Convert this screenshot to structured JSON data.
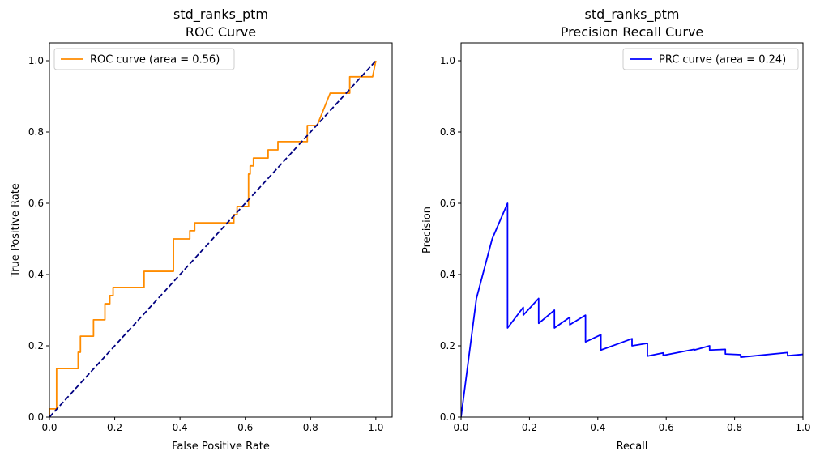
{
  "chart_data": [
    {
      "type": "line",
      "title": "std_ranks_ptm",
      "subtitle": "ROC Curve",
      "xlabel": "False Positive Rate",
      "ylabel": "True Positive Rate",
      "xlim": [
        0.0,
        1.05
      ],
      "ylim": [
        0.0,
        1.05
      ],
      "xticks": [
        "0.0",
        "0.2",
        "0.4",
        "0.6",
        "0.8",
        "1.0"
      ],
      "yticks": [
        "0.0",
        "0.2",
        "0.4",
        "0.6",
        "0.8",
        "1.0"
      ],
      "grid": false,
      "legend_position": "upper-left",
      "series": [
        {
          "name": "ROC curve (area = 0.56)",
          "color": "#ff8c00",
          "style": "solid",
          "x": [
            0.0,
            0.0,
            0.022,
            0.022,
            0.088,
            0.088,
            0.095,
            0.095,
            0.135,
            0.135,
            0.17,
            0.17,
            0.185,
            0.185,
            0.195,
            0.195,
            0.29,
            0.29,
            0.38,
            0.38,
            0.43,
            0.43,
            0.445,
            0.445,
            0.565,
            0.565,
            0.575,
            0.575,
            0.61,
            0.61,
            0.615,
            0.615,
            0.625,
            0.625,
            0.67,
            0.67,
            0.7,
            0.7,
            0.79,
            0.79,
            0.82,
            0.82,
            0.86,
            0.92,
            0.92,
            0.99,
            1.0
          ],
          "y": [
            0.0,
            0.023,
            0.023,
            0.136,
            0.136,
            0.182,
            0.182,
            0.227,
            0.227,
            0.273,
            0.273,
            0.318,
            0.318,
            0.341,
            0.341,
            0.364,
            0.364,
            0.409,
            0.409,
            0.5,
            0.5,
            0.523,
            0.523,
            0.545,
            0.545,
            0.568,
            0.568,
            0.591,
            0.591,
            0.682,
            0.682,
            0.705,
            0.705,
            0.727,
            0.727,
            0.75,
            0.75,
            0.773,
            0.773,
            0.818,
            0.818,
            0.818,
            0.909,
            0.909,
            0.955,
            0.955,
            1.0
          ]
        },
        {
          "name": "",
          "color": "#000080",
          "style": "dashed",
          "x": [
            0.0,
            1.0
          ],
          "y": [
            0.0,
            1.0
          ]
        }
      ]
    },
    {
      "type": "line",
      "title": "std_ranks_ptm",
      "subtitle": "Precision Recall Curve",
      "xlabel": "Recall",
      "ylabel": "Precision",
      "xlim": [
        0.0,
        1.0
      ],
      "ylim": [
        0.0,
        1.05
      ],
      "xticks": [
        "0.0",
        "0.2",
        "0.4",
        "0.6",
        "0.8",
        "1.0"
      ],
      "yticks": [
        "0.0",
        "0.2",
        "0.4",
        "0.6",
        "0.8",
        "1.0"
      ],
      "grid": false,
      "legend_position": "upper-right",
      "series": [
        {
          "name": "PRC curve (area = 0.24)",
          "color": "#0000ff",
          "style": "solid",
          "x": [
            0.0,
            0.045,
            0.091,
            0.136,
            0.136,
            0.182,
            0.182,
            0.227,
            0.227,
            0.273,
            0.273,
            0.318,
            0.318,
            0.364,
            0.364,
            0.409,
            0.409,
            0.5,
            0.5,
            0.545,
            0.545,
            0.591,
            0.591,
            0.682,
            0.682,
            0.727,
            0.727,
            0.773,
            0.773,
            0.818,
            0.818,
            0.955,
            0.955,
            1.0
          ],
          "y": [
            0.0,
            0.333,
            0.5,
            0.6,
            0.25,
            0.308,
            0.286,
            0.333,
            0.263,
            0.3,
            0.25,
            0.28,
            0.259,
            0.286,
            0.211,
            0.231,
            0.188,
            0.22,
            0.2,
            0.207,
            0.171,
            0.18,
            0.173,
            0.19,
            0.188,
            0.2,
            0.188,
            0.19,
            0.177,
            0.175,
            0.168,
            0.181,
            0.172,
            0.176
          ]
        }
      ]
    }
  ]
}
